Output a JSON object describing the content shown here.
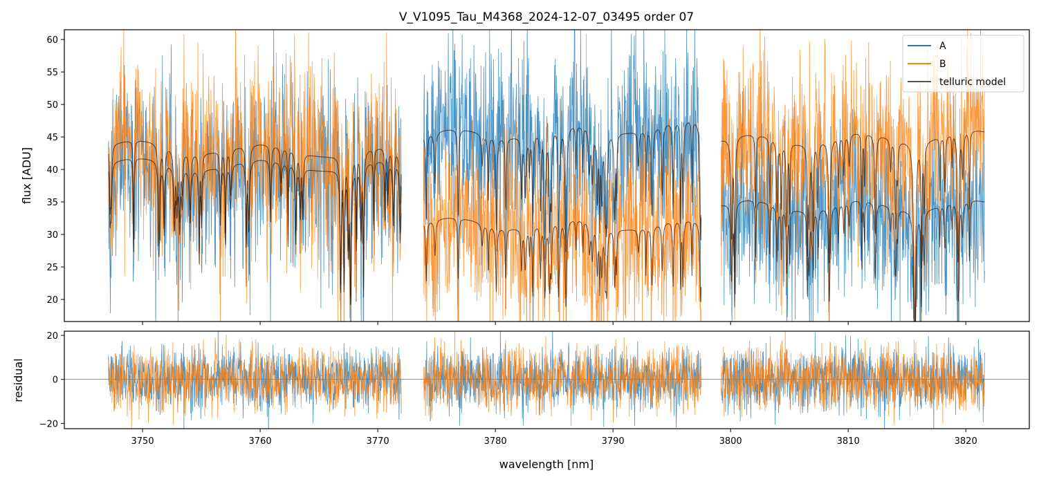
{
  "chart_data": [
    {
      "type": "line",
      "title": "V_V1095_Tau_M4368_2024-12-07_03495  order 07",
      "xlabel": "",
      "ylabel": "flux [ADU]",
      "xlim": [
        3743.35,
        3825.4
      ],
      "ylim": [
        16.6,
        61.5
      ],
      "yticks": [
        20,
        25,
        30,
        35,
        40,
        45,
        50,
        55,
        60
      ],
      "legend": {
        "placement": "top-right",
        "entries": [
          "A",
          "B",
          "telluric model"
        ]
      },
      "segments": [
        {
          "x_range": [
            3747.1,
            3772.0
          ],
          "A_continuum": 41.0,
          "B_continuum": 43.5,
          "A_model_level": [
            41.0,
            40.5
          ],
          "B_model_level": [
            43.8,
            42.5
          ]
        },
        {
          "x_range": [
            3773.9,
            3797.5
          ],
          "A_continuum": 46.5,
          "B_continuum": 31.5,
          "A_model_level": [
            45.2,
            47.0
          ],
          "B_model_level": [
            31.8,
            31.5
          ]
        },
        {
          "x_range": [
            3799.2,
            3821.6
          ],
          "A_continuum": 34.5,
          "B_continuum": 44.0,
          "A_model_level": [
            34.5,
            34.5
          ],
          "B_model_level": [
            44.5,
            45.3
          ]
        }
      ],
      "noise_sigma": 7,
      "series": [
        {
          "name": "A",
          "color": "#1f77b4"
        },
        {
          "name": "B",
          "color": "#ff7f0e"
        },
        {
          "name": "telluric model",
          "color": "#3a2a1f"
        }
      ]
    },
    {
      "type": "line",
      "xlabel": "wavelength [nm]",
      "ylabel": "residual",
      "xlim": [
        3743.35,
        3825.4
      ],
      "ylim": [
        -22.4,
        21.9
      ],
      "xticks": [
        3750,
        3760,
        3770,
        3780,
        3790,
        3800,
        3810,
        3820
      ],
      "yticks": [
        -20,
        0,
        20
      ],
      "residual_sigma": 7,
      "series": [
        {
          "name": "A",
          "color": "#1f77b4"
        },
        {
          "name": "B",
          "color": "#ff7f0e"
        }
      ]
    }
  ]
}
